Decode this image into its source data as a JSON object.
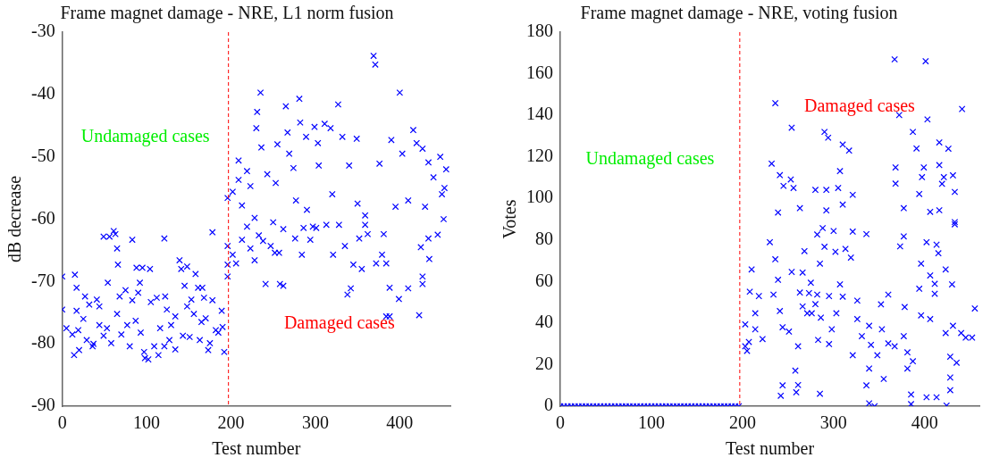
{
  "chart_data": [
    {
      "type": "scatter",
      "title": "Frame magnet damage - NRE, L1 norm fusion",
      "xlabel": "Test number",
      "ylabel": "dB decrease",
      "marker": "cross",
      "xlim": [
        0,
        460
      ],
      "xticks": [
        0,
        100,
        200,
        300,
        400
      ],
      "ylim": [
        -90,
        -30
      ],
      "yticks": [
        -90,
        -80,
        -70,
        -60,
        -50,
        -40,
        -30
      ],
      "ref_lines": [
        {
          "axis": "x",
          "value": 197,
          "color": "#ff0000",
          "line_style": "dashed"
        }
      ],
      "annotations": [
        "Undamaged cases",
        "Damaged cases"
      ],
      "series": [
        {
          "color": "#0000ff",
          "x": [
            0,
            0,
            5,
            12,
            14,
            15,
            17,
            17,
            19,
            20,
            25,
            27,
            29,
            32,
            36,
            37,
            41,
            44,
            44,
            49,
            49,
            53,
            54,
            56,
            58,
            61,
            63,
            65,
            65,
            66,
            68,
            70,
            75,
            77,
            80,
            83,
            83,
            87,
            88,
            90,
            92,
            93,
            95,
            97,
            98,
            102,
            104,
            105,
            109,
            112,
            114,
            116,
            121,
            121,
            122,
            124,
            127,
            129,
            134,
            134,
            139,
            141,
            143,
            145,
            148,
            148,
            151,
            153,
            156,
            158,
            161,
            163,
            165,
            166,
            168,
            170,
            173,
            175,
            178,
            178,
            182,
            185,
            189,
            190,
            192,
            196,
            196,
            196,
            202,
            206,
            213,
            219,
            223,
            228,
            228,
            233,
            238,
            241,
            247,
            250,
            252,
            257,
            258,
            262,
            262,
            276,
            284,
            286,
            294,
            297,
            301,
            313,
            321,
            328,
            335,
            338,
            342,
            345,
            352,
            355,
            359,
            362,
            372,
            379,
            381,
            384,
            384,
            388,
            388,
            399,
            410,
            423,
            425,
            427,
            427,
            434,
            435,
            196,
            202,
            209,
            209,
            213,
            219,
            223,
            230,
            231,
            235,
            236,
            243,
            253,
            255,
            265,
            267,
            269,
            274,
            281,
            282,
            289,
            299,
            303,
            304,
            311,
            318,
            327,
            332,
            340,
            349,
            359,
            369,
            371,
            376,
            390,
            400,
            403,
            416,
            420,
            427,
            434,
            440,
            445,
            448,
            450,
            452,
            453,
            455,
            277,
            290,
            320,
            350,
            395,
            410,
            430
          ],
          "values": [
            -69.2,
            -74.5,
            -77.5,
            -78.5,
            -81.8,
            -68.9,
            -71,
            -74.7,
            -77.8,
            -81,
            -76,
            -72.4,
            -79.4,
            -73.7,
            -80.4,
            -80,
            -72.9,
            -74,
            -77,
            -62.8,
            -78.7,
            -77.5,
            -70.2,
            -62.8,
            -79.9,
            -61.9,
            -62.4,
            -64.7,
            -75.2,
            -67.3,
            -72.4,
            -78.5,
            -71.4,
            -77,
            -80.4,
            -63.3,
            -73,
            -76.3,
            -67.8,
            -71.8,
            -70.2,
            -78.2,
            -67.8,
            -81.3,
            -82.3,
            -82.5,
            -68,
            -73.3,
            -80.4,
            -72.6,
            -81.8,
            -77.5,
            -63.1,
            -80.4,
            -72.4,
            -74.5,
            -79.4,
            -77,
            -80.9,
            -75.6,
            -66.6,
            -68,
            -78.7,
            -70.7,
            -67.6,
            -74,
            -78.9,
            -72.9,
            -75.2,
            -68.8,
            -71,
            -79.4,
            -76.5,
            -71,
            -72.6,
            -75.9,
            -81,
            -79.9,
            -62.1,
            -73,
            -77.8,
            -78.2,
            -74.7,
            -77.3,
            -81.3,
            -69.2,
            -67.3,
            -64.3,
            -65.7,
            -67.1,
            -63.3,
            -61.2,
            -64.7,
            -66.6,
            -59.8,
            -62.6,
            -63.5,
            -70.4,
            -64.3,
            -60.5,
            -65.4,
            -65.4,
            -70.4,
            -61.6,
            -70.7,
            -63.1,
            -65.7,
            -61.4,
            -63.3,
            -61.2,
            -61.4,
            -60.9,
            -65.7,
            -60.9,
            -64.3,
            -72.1,
            -71.1,
            -67.3,
            -63.1,
            -68,
            -60.9,
            -62.4,
            -67.1,
            -65.7,
            -62.4,
            -67.1,
            -75.6,
            -75.6,
            -71,
            -72.8,
            -71.1,
            -75.4,
            -64.5,
            -70.4,
            -69.2,
            -63.1,
            -66.4,
            -56.6,
            -55.6,
            -50.6,
            -53.7,
            -57.8,
            -52.3,
            -54.7,
            -45.4,
            -42.8,
            -39.7,
            -48.5,
            -52.8,
            -54.2,
            -48,
            -41.9,
            -46.1,
            -49.5,
            -51.8,
            -40.7,
            -44.5,
            -46.8,
            -45.2,
            -47.8,
            -51.4,
            -44.7,
            -45.4,
            -41.6,
            -46.8,
            -51.4,
            -47.1,
            -59.4,
            -33.8,
            -35.2,
            -51.1,
            -47.3,
            -39.7,
            -49.5,
            -45.7,
            -47.8,
            -48.7,
            -50.9,
            -53.3,
            -62.5,
            -50,
            -56,
            -60,
            -55,
            -52,
            -57,
            -58.5,
            -56,
            -57.5,
            -58,
            -57,
            -58
          ]
        }
      ]
    },
    {
      "type": "scatter",
      "title": "Frame magnet damage - NRE, voting fusion",
      "xlabel": "Test number",
      "ylabel": "Votes",
      "marker": "cross",
      "xlim": [
        0,
        460
      ],
      "xticks": [
        0,
        100,
        200,
        300,
        400
      ],
      "ylim": [
        0,
        180
      ],
      "yticks": [
        0,
        20,
        40,
        60,
        80,
        100,
        120,
        140,
        160,
        180
      ],
      "ref_lines": [
        {
          "axis": "x",
          "value": 197,
          "color": "#ff0000",
          "line_style": "dashed"
        }
      ],
      "annotations": [
        "Undamaged cases",
        "Damaged cases"
      ],
      "series": [
        {
          "color": "#0000ff",
          "x": [
            0,
            4,
            8,
            12,
            16,
            20,
            24,
            28,
            32,
            36,
            40,
            44,
            48,
            52,
            56,
            60,
            64,
            68,
            72,
            76,
            80,
            84,
            88,
            92,
            96,
            100,
            104,
            108,
            112,
            116,
            120,
            124,
            128,
            132,
            136,
            140,
            144,
            148,
            152,
            156,
            160,
            164,
            168,
            172,
            176,
            180,
            184,
            188,
            192,
            196,
            367,
            401,
            236,
            441,
            372,
            403,
            254,
            290,
            387,
            294,
            310,
            416,
            426,
            317,
            232,
            391,
            368,
            399,
            416,
            307,
            241,
            253,
            397,
            421,
            431,
            245,
            256,
            280,
            292,
            305,
            368,
            419,
            394,
            433,
            292,
            263,
            239,
            310,
            321,
            377,
            406,
            416,
            433,
            433,
            288,
            300,
            282,
            321,
            336,
            377,
            373,
            230,
            290,
            313,
            402,
            413,
            415,
            268,
            302,
            236,
            319,
            285,
            396,
            423,
            210,
            266,
            254,
            406,
            239,
            275,
            307,
            430,
            411,
            394,
            208,
            263,
            273,
            234,
            295,
            310,
            282,
            360,
            411,
            218,
            326,
            352,
            378,
            280,
            266,
            241,
            271,
            276,
            214,
            303,
            286,
            326,
            396,
            406,
            203,
            244,
            339,
            298,
            353,
            431,
            214,
            251,
            377,
            222,
            283,
            331,
            423,
            440,
            445,
            207,
            261,
            295,
            360,
            367,
            341,
            381,
            321,
            348,
            428,
            435,
            387,
            381,
            339,
            258,
            355,
            428,
            244,
            261,
            336,
            242,
            259,
            285,
            428,
            385,
            402,
            413,
            339,
            345,
            385,
            424,
            205,
            203,
            452,
            455
          ],
          "values": [
            0,
            0,
            0,
            0,
            0,
            0,
            0,
            0,
            0,
            0,
            0,
            0,
            0,
            0,
            0,
            0,
            0,
            0,
            0,
            0,
            0,
            0,
            0,
            0,
            0,
            0,
            0,
            0,
            0,
            0,
            0,
            0,
            0,
            0,
            0,
            0,
            0,
            0,
            0,
            0,
            0,
            0,
            0,
            0,
            0,
            0,
            0,
            0,
            0,
            0,
            166.9,
            166,
            145.8,
            143,
            140.1,
            138,
            134,
            132,
            132,
            129.2,
            125.9,
            126.9,
            123.9,
            123,
            116.7,
            124,
            114.9,
            114.9,
            116,
            113.1,
            111.2,
            109.1,
            110.2,
            110.2,
            111.1,
            106,
            105,
            104.1,
            104.1,
            105,
            107.1,
            107,
            102.1,
            103.1,
            94.2,
            95.3,
            93.2,
            97,
            101.7,
            95.3,
            93.5,
            94.3,
            88.6,
            87.5,
            85.7,
            84.3,
            82.6,
            84,
            82.8,
            81.7,
            76.9,
            78.9,
            76.7,
            75.7,
            78.9,
            77.7,
            73.6,
            74.6,
            74.3,
            70.7,
            71.5,
            68.6,
            68.6,
            65.8,
            65.8,
            64.3,
            64.6,
            62.9,
            60.8,
            59.4,
            58.6,
            58.6,
            58.9,
            56.5,
            55.1,
            54.7,
            54.4,
            53.7,
            53,
            52.7,
            53.7,
            53.7,
            54.1,
            53,
            50.8,
            49,
            47.7,
            49.1,
            48,
            45.8,
            44.7,
            44.7,
            44.7,
            44.7,
            42.6,
            41.9,
            43.7,
            41.9,
            39.4,
            38,
            38.7,
            37,
            37,
            38.7,
            37,
            35.9,
            33.7,
            32.3,
            31.9,
            33.7,
            35.2,
            35.2,
            33,
            30.9,
            28.8,
            29.9,
            30.2,
            28.8,
            29.5,
            25.9,
            24.5,
            24.5,
            23.8,
            20.9,
            21.6,
            18.1,
            18.1,
            17.1,
            13.1,
            13.8,
            10,
            10.2,
            10,
            5,
            6.7,
            6,
            7.7,
            5.6,
            4.3,
            4.3,
            1.4,
            0,
            1,
            0.3,
            26.6,
            28.8,
            33,
            47
          ]
        }
      ]
    }
  ]
}
